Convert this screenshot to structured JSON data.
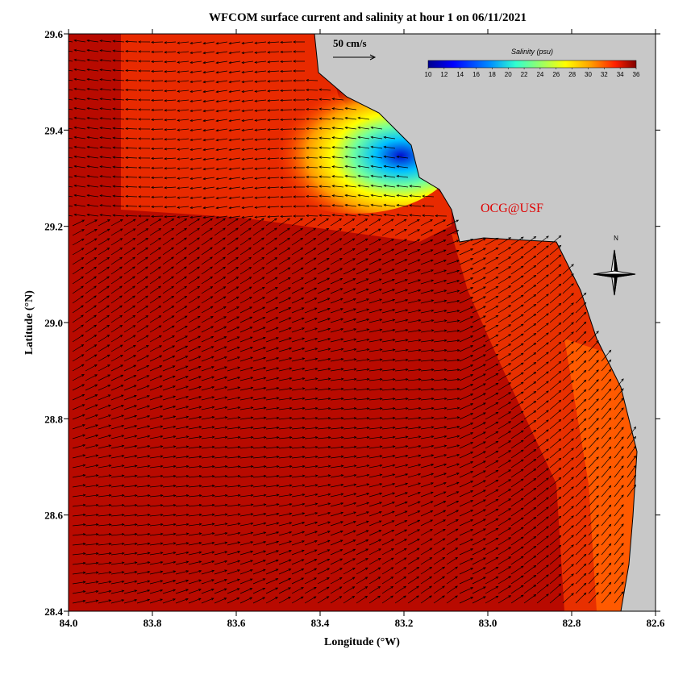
{
  "chart_data": {
    "type": "map",
    "title": "WFCOM surface current and salinity at hour 1 on 06/11/2021",
    "x_label": "Longitude (°W)",
    "y_label": "Latitude (°N)",
    "xlim": [
      84.0,
      82.6
    ],
    "ylim": [
      28.4,
      29.6
    ],
    "xticks": [
      {
        "value": 84.0,
        "label": "84.0"
      },
      {
        "value": 83.8,
        "label": "83.8"
      },
      {
        "value": 83.6,
        "label": "83.6"
      },
      {
        "value": 83.4,
        "label": "83.4"
      },
      {
        "value": 83.2,
        "label": "83.2"
      },
      {
        "value": 83.0,
        "label": "83.0"
      },
      {
        "value": 82.8,
        "label": "82.8"
      },
      {
        "value": 82.6,
        "label": "82.6"
      }
    ],
    "yticks": [
      {
        "value": 28.4,
        "label": "28.4"
      },
      28.6,
      28.8,
      {
        "value": 29.0,
        "label": "29.0"
      },
      29.2,
      29.4,
      29.6
    ],
    "scale_label": "50 cm/s",
    "annotation": "OCG@USF",
    "compass": "N",
    "colorbar": {
      "title": "Salinity (psu)",
      "lim": [
        10,
        36
      ],
      "ticks": [
        10,
        12,
        14,
        16,
        18,
        20,
        22,
        24,
        26,
        28,
        30,
        32,
        34,
        36
      ]
    }
  }
}
